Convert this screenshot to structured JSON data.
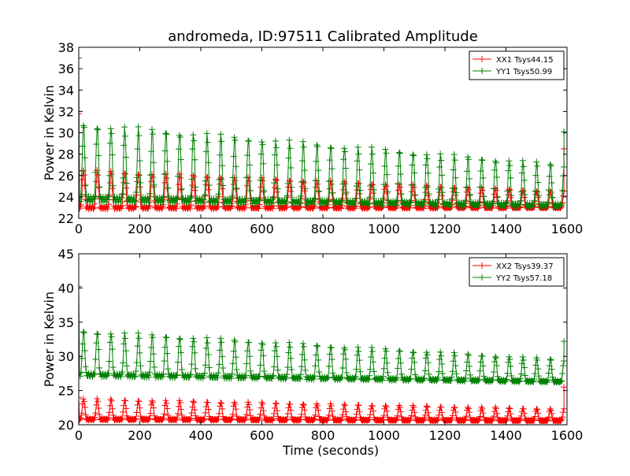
{
  "figure": {
    "title": "andromeda, ID:97511 Calibrated Amplitude"
  },
  "chart_data": [
    {
      "type": "line",
      "title": "andromeda, ID:97511 Calibrated Amplitude",
      "xlabel": "",
      "ylabel": "Power in Kelvin",
      "xlim": [
        0,
        1600
      ],
      "ylim": [
        22,
        38
      ],
      "xticks": [
        0,
        200,
        400,
        600,
        800,
        1000,
        1200,
        1400,
        1600
      ],
      "yticks": [
        22,
        24,
        26,
        28,
        30,
        32,
        34,
        36,
        38
      ],
      "grid": false,
      "legend_position": "top-right",
      "series": [
        {
          "name": "XX1 Tsys44.15",
          "color": "#ff0000",
          "marker": "plus",
          "period_s": 45,
          "trough_start": 23.0,
          "trough_end": 23.0,
          "peak_start": 26.5,
          "peak_end": 24.5,
          "first_value": 31.8,
          "last_value": 28.5
        },
        {
          "name": "YY1 Tsys50.99",
          "color": "#008000",
          "marker": "plus",
          "period_s": 45,
          "trough_start": 23.8,
          "trough_end": 23.2,
          "peak_start": 30.9,
          "peak_end": 27.0,
          "first_value": 37.0,
          "last_value": 30.1
        }
      ]
    },
    {
      "type": "line",
      "title": "",
      "xlabel": "Time (seconds)",
      "ylabel": "Power in Kelvin",
      "xlim": [
        0,
        1600
      ],
      "ylim": [
        20,
        45
      ],
      "xticks": [
        0,
        200,
        400,
        600,
        800,
        1000,
        1200,
        1400,
        1600
      ],
      "yticks": [
        20,
        25,
        30,
        35,
        40,
        45
      ],
      "grid": false,
      "legend_position": "top-right",
      "series": [
        {
          "name": "XX2 Tsys39.37",
          "color": "#ff0000",
          "marker": "plus",
          "period_s": 45,
          "trough_start": 20.8,
          "trough_end": 20.6,
          "peak_start": 23.8,
          "peak_end": 22.3,
          "first_value": 24.0,
          "last_value": 25.5
        },
        {
          "name": "YY2 Tsys57.18",
          "color": "#008000",
          "marker": "plus",
          "period_s": 45,
          "trough_start": 27.3,
          "trough_end": 26.3,
          "peak_start": 33.8,
          "peak_end": 29.5,
          "first_value": 40.2,
          "last_value": 32.2
        }
      ]
    }
  ]
}
